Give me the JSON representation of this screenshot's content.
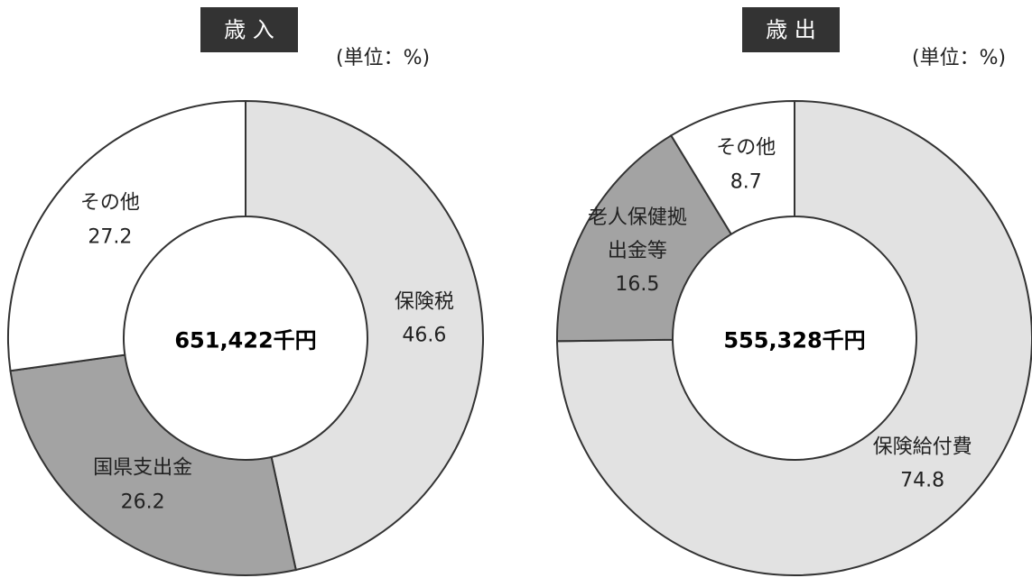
{
  "chart_data": [
    {
      "type": "pie",
      "title": "歳 入",
      "unit_label": "(単位：%)",
      "center_label": "651,422千円",
      "categories": [
        "保険税",
        "国県支出金",
        "その他"
      ],
      "values": [
        46.6,
        26.2,
        27.2
      ],
      "colors": [
        "#e2e2e2",
        "#a3a3a3",
        "#ffffff"
      ]
    },
    {
      "type": "pie",
      "title": "歳 出",
      "unit_label": "(単位：%)",
      "center_label": "555,328千円",
      "categories": [
        "保険給付費",
        "老人保健拠出金等",
        "その他"
      ],
      "values": [
        74.8,
        16.5,
        8.7
      ],
      "colors": [
        "#e2e2e2",
        "#a3a3a3",
        "#ffffff"
      ]
    }
  ]
}
